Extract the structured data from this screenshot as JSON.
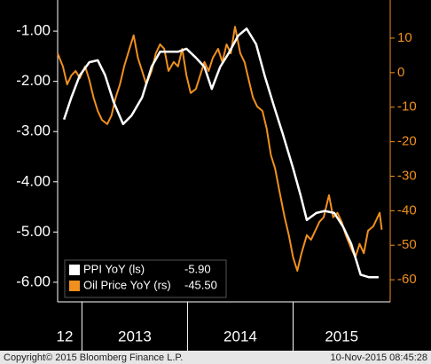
{
  "chart_data": {
    "type": "line",
    "x_labels": [
      "12",
      "2013",
      "2014",
      "2015"
    ],
    "xlim": [
      2012.77,
      2015.92
    ],
    "xticks": [
      2013,
      2014,
      2015
    ],
    "ylim": [
      -0.38,
      -6.39
    ],
    "yticks": [
      {
        "value": -1,
        "label": "-1.00"
      },
      {
        "value": -2,
        "label": "-2.00"
      },
      {
        "value": -3,
        "label": "-3.00"
      },
      {
        "value": -4,
        "label": "-4.00"
      },
      {
        "value": -5,
        "label": "-5.00"
      },
      {
        "value": -6,
        "label": "-6.00"
      }
    ],
    "y2lim": [
      21.05,
      -66.4
    ],
    "y2ticks": [
      10,
      0,
      -10,
      -20,
      -30,
      -40,
      -50,
      -60
    ],
    "grid": false,
    "series": [
      {
        "name": "PPI YoY (ls)",
        "legend_value": "-5.90",
        "color": "#ffffff",
        "axis": "y",
        "x": [
          2012.83,
          2012.9,
          2012.98,
          2013.07,
          2013.15,
          2013.22,
          2013.3,
          2013.39,
          2013.47,
          2013.57,
          2013.66,
          2013.74,
          2013.82,
          2013.91,
          2013.99,
          2014.08,
          2014.16,
          2014.23,
          2014.31,
          2014.39,
          2014.48,
          2014.56,
          2014.65,
          2014.73,
          2014.82,
          2014.9,
          2015.0,
          2015.07,
          2015.13,
          2015.22,
          2015.3,
          2015.39,
          2015.47,
          2015.55,
          2015.64,
          2015.72,
          2015.81
        ],
        "values": [
          -2.76,
          -2.32,
          -1.88,
          -1.62,
          -1.58,
          -1.88,
          -2.41,
          -2.85,
          -2.68,
          -2.32,
          -1.71,
          -1.41,
          -1.41,
          -1.41,
          -1.35,
          -1.53,
          -1.71,
          -2.15,
          -1.71,
          -1.44,
          -1.09,
          -0.95,
          -1.26,
          -1.88,
          -2.5,
          -3.03,
          -3.73,
          -4.26,
          -4.76,
          -4.62,
          -4.58,
          -4.62,
          -4.88,
          -5.23,
          -5.85,
          -5.9,
          -5.9
        ]
      },
      {
        "name": "Oil Price YoY (rs)",
        "legend_value": "-45.50",
        "color": "#f0901e",
        "axis": "y2",
        "x": [
          2012.77,
          2012.82,
          2012.86,
          2012.9,
          2012.94,
          2012.98,
          2013.03,
          2013.07,
          2013.11,
          2013.15,
          2013.19,
          2013.24,
          2013.28,
          2013.32,
          2013.36,
          2013.4,
          2013.45,
          2013.49,
          2013.53,
          2013.57,
          2013.61,
          2013.66,
          2013.7,
          2013.74,
          2013.78,
          2013.82,
          2013.87,
          2013.91,
          2013.95,
          2013.99,
          2014.03,
          2014.08,
          2014.12,
          2014.16,
          2014.2,
          2014.24,
          2014.29,
          2014.33,
          2014.37,
          2014.41,
          2014.45,
          2014.5,
          2014.54,
          2014.58,
          2014.62,
          2014.66,
          2014.71,
          2014.75,
          2014.79,
          2014.83,
          2014.87,
          2014.92,
          2014.96,
          2015.0,
          2015.04,
          2015.08,
          2015.13,
          2015.17,
          2015.21,
          2015.25,
          2015.29,
          2015.34,
          2015.38,
          2015.42,
          2015.46,
          2015.5,
          2015.55,
          2015.59,
          2015.63,
          2015.67,
          2015.71,
          2015.76,
          2015.8,
          2015.82,
          2015.84
        ],
        "values": [
          5.6,
          1.8,
          -3.4,
          -0.8,
          0.5,
          -1.6,
          1.8,
          -2.1,
          -7.2,
          -11.1,
          -13.7,
          -14.9,
          -12.4,
          -7.2,
          -3.4,
          1.8,
          6.9,
          10.8,
          4.3,
          0.5,
          -3.4,
          0.5,
          5.6,
          8.2,
          6.9,
          0.5,
          3.1,
          1.8,
          6.9,
          -0.8,
          -5.9,
          -4.7,
          -0.8,
          3.1,
          0.5,
          4.3,
          6.9,
          3.1,
          8.2,
          5.6,
          13.3,
          5.6,
          3.1,
          -2.1,
          -7.2,
          -9.8,
          -11.1,
          -16.2,
          -23.9,
          -27.8,
          -34.2,
          -41.9,
          -47.1,
          -53.5,
          -57.4,
          -52.3,
          -47.1,
          -48.4,
          -45.8,
          -43.2,
          -41.9,
          -35.5,
          -41.9,
          -40.6,
          -43.2,
          -47.1,
          -50.9,
          -53.5,
          -49.6,
          -52.3,
          -45.8,
          -44.5,
          -41.9,
          -40.6,
          -45.5
        ]
      }
    ],
    "footer_left": "Copyright© 2015 Bloomberg Finance L.P.",
    "footer_right": "10-Nov-2015 08:45:28"
  }
}
